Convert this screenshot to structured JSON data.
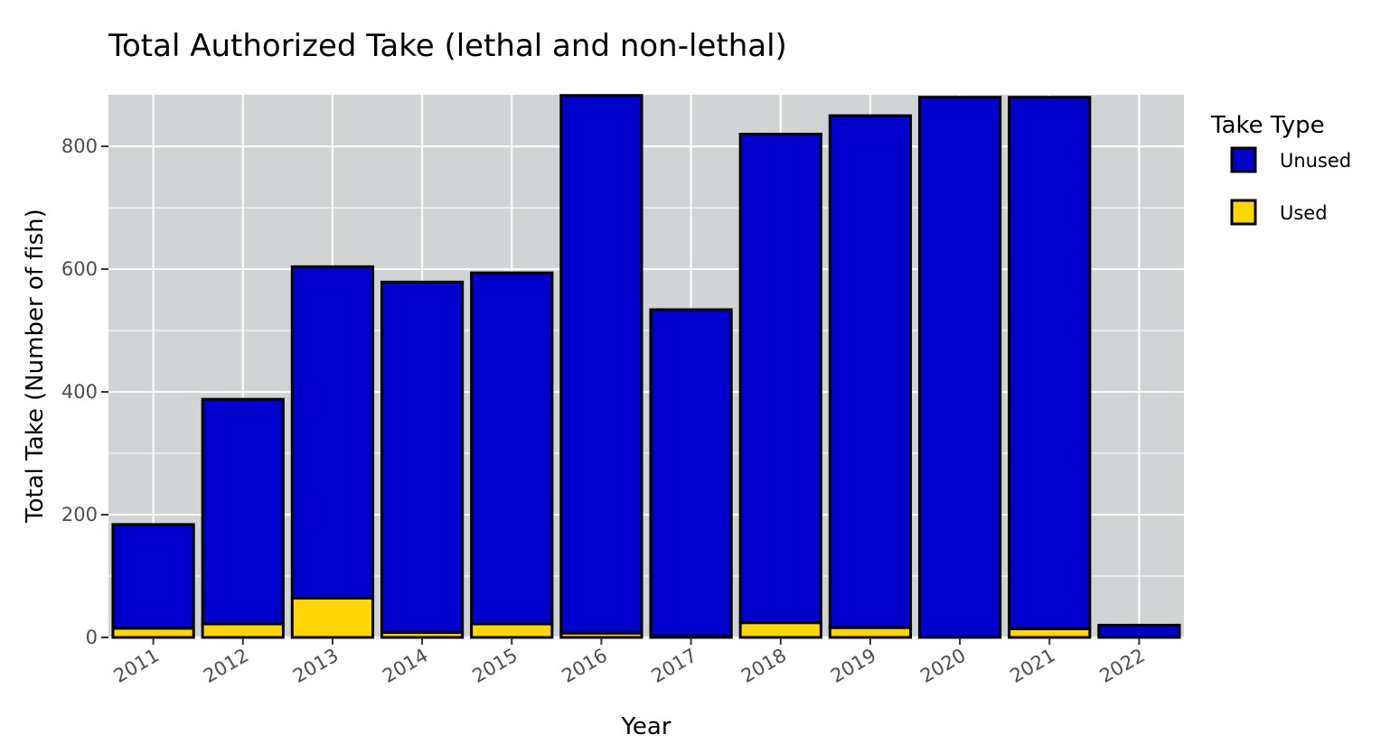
{
  "chart_data": {
    "type": "bar",
    "stacked": true,
    "title": "Total Authorized Take (lethal and non-lethal)",
    "xlabel": "Year",
    "ylabel": "Total Take (Number of fish)",
    "categories": [
      "2011",
      "2012",
      "2013",
      "2014",
      "2015",
      "2016",
      "2017",
      "2018",
      "2019",
      "2020",
      "2021",
      "2022"
    ],
    "series": [
      {
        "name": "Used",
        "color": "#FFD700",
        "values": [
          15,
          22,
          64,
          8,
          22,
          7,
          2,
          24,
          16,
          0,
          14,
          0
        ]
      },
      {
        "name": "Unused",
        "color": "#0000CD",
        "values": [
          169,
          366,
          540,
          571,
          572,
          876,
          532,
          796,
          834,
          880,
          866,
          20
        ]
      }
    ],
    "ylim": [
      0,
      884
    ],
    "yticks": [
      0,
      200,
      400,
      600,
      800
    ],
    "legend": {
      "title": "Take Type",
      "items": [
        "Unused",
        "Used"
      ],
      "position": "right"
    },
    "panel_background": "#D0D4D5",
    "grid": true
  }
}
